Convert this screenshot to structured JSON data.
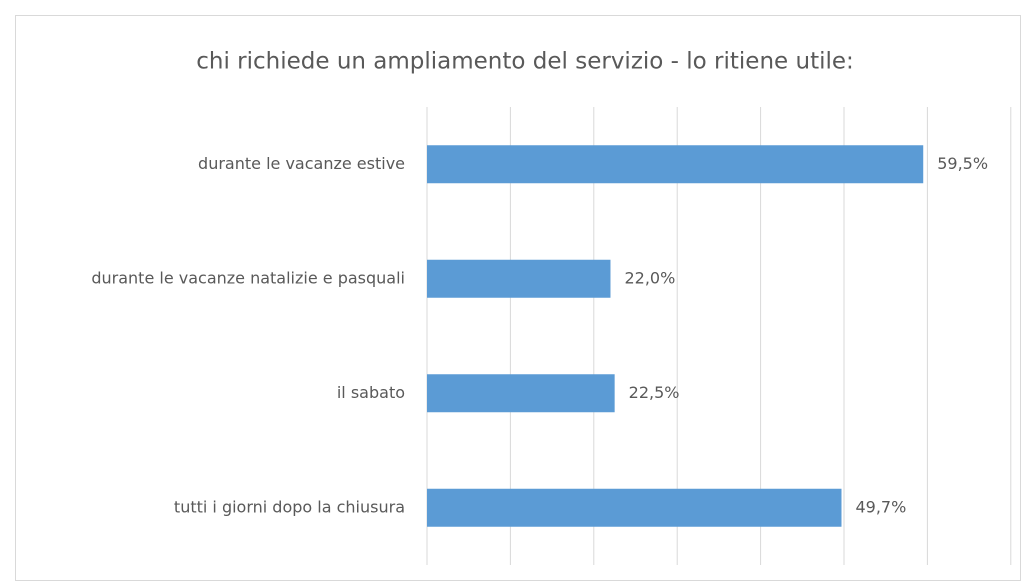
{
  "chart_data": {
    "type": "hbar",
    "title": "chi richiede un ampliamento del servizio - lo ritiene utile:",
    "categories": [
      "durante le vacanze estive",
      "durante le vacanze natalizie e pasquali",
      "il sabato",
      "tutti i giorni dopo la chiusura"
    ],
    "values": [
      59.5,
      22.0,
      22.5,
      49.7
    ],
    "value_labels": [
      "59,5%",
      "22,0%",
      "22,5%",
      "49,7%"
    ],
    "color": "#5b9bd5",
    "xlim": [
      0,
      70
    ],
    "xticks": [
      0,
      10,
      20,
      30,
      40,
      50,
      60,
      70
    ],
    "grid": true
  }
}
